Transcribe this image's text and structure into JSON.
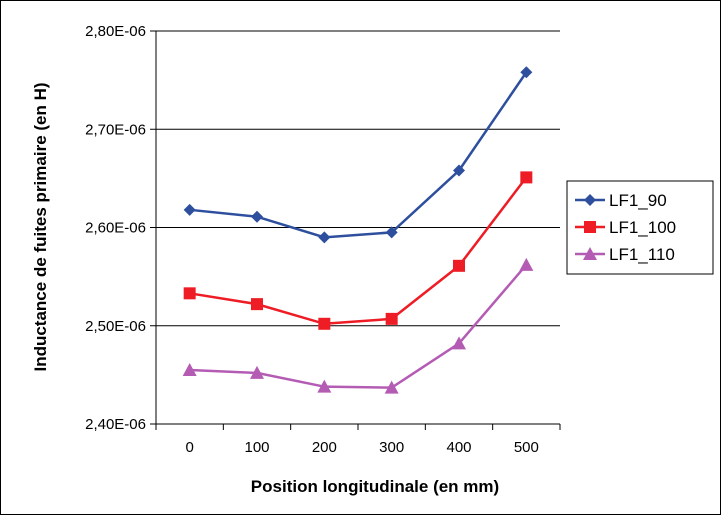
{
  "chart_data": {
    "type": "line",
    "title": "",
    "xlabel": "Position longitudinale (en mm)",
    "ylabel": "Inductance de fuites primaire (en H)",
    "categories": [
      "0",
      "100",
      "200",
      "300",
      "400",
      "500"
    ],
    "ylim": [
      2.4e-06,
      2.8e-06
    ],
    "yticks": [
      2.4e-06,
      2.5e-06,
      2.6e-06,
      2.7e-06,
      2.8e-06
    ],
    "ytick_labels": [
      "2,40E-06",
      "2,50E-06",
      "2,60E-06",
      "2,70E-06",
      "2,80E-06"
    ],
    "grid": "horizontal",
    "legend_position": "right",
    "series": [
      {
        "name": "LF1_90",
        "color": "#2e4f9e",
        "marker": "diamond",
        "values": [
          2.618e-06,
          2.611e-06,
          2.59e-06,
          2.595e-06,
          2.658e-06,
          2.758e-06
        ]
      },
      {
        "name": "LF1_100",
        "color": "#ee1c25",
        "marker": "square",
        "values": [
          2.533e-06,
          2.522e-06,
          2.502e-06,
          2.507e-06,
          2.561e-06,
          2.651e-06
        ]
      },
      {
        "name": "LF1_110",
        "color": "#b45cb4",
        "marker": "triangle",
        "values": [
          2.455e-06,
          2.452e-06,
          2.438e-06,
          2.437e-06,
          2.482e-06,
          2.562e-06
        ]
      }
    ]
  }
}
